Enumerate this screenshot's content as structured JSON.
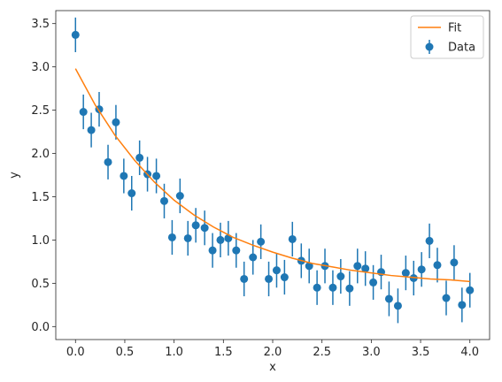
{
  "chart_data": {
    "type": "scatter",
    "xlabel": "x",
    "ylabel": "y",
    "xlim": [
      -0.2,
      4.2
    ],
    "ylim": [
      -0.15,
      3.65
    ],
    "xticks": [
      0.0,
      0.5,
      1.0,
      1.5,
      2.0,
      2.5,
      3.0,
      3.5,
      4.0
    ],
    "xtick_labels": [
      "0.0",
      "0.5",
      "1.0",
      "1.5",
      "2.0",
      "2.5",
      "3.0",
      "3.5",
      "4.0"
    ],
    "yticks": [
      0.0,
      0.5,
      1.0,
      1.5,
      2.0,
      2.5,
      3.0,
      3.5
    ],
    "ytick_labels": [
      "0.0",
      "0.5",
      "1.0",
      "1.5",
      "2.0",
      "2.5",
      "3.0",
      "3.5"
    ],
    "grid": false,
    "legend_position": "top-right",
    "series": [
      {
        "name": "Fit",
        "kind": "line",
        "color": "#ff7f0e",
        "x": [
          0.0,
          0.2,
          0.4,
          0.6,
          0.8,
          1.0,
          1.2,
          1.4,
          1.6,
          1.8,
          2.0,
          2.2,
          2.4,
          2.6,
          2.8,
          3.0,
          3.2,
          3.4,
          3.6,
          3.8,
          4.0
        ],
        "y": [
          2.98,
          2.56,
          2.21,
          1.92,
          1.67,
          1.46,
          1.29,
          1.15,
          1.03,
          0.94,
          0.86,
          0.79,
          0.73,
          0.69,
          0.65,
          0.62,
          0.59,
          0.57,
          0.55,
          0.54,
          0.52
        ]
      },
      {
        "name": "Data",
        "kind": "errorbar",
        "color": "#1f77b4",
        "error": 0.2,
        "x": [
          0.0,
          0.08,
          0.16,
          0.24,
          0.33,
          0.41,
          0.49,
          0.57,
          0.65,
          0.73,
          0.82,
          0.9,
          0.98,
          1.06,
          1.14,
          1.22,
          1.31,
          1.39,
          1.47,
          1.55,
          1.63,
          1.71,
          1.8,
          1.88,
          1.96,
          2.04,
          2.12,
          2.2,
          2.29,
          2.37,
          2.45,
          2.53,
          2.61,
          2.69,
          2.78,
          2.86,
          2.94,
          3.02,
          3.1,
          3.18,
          3.27,
          3.35,
          3.43,
          3.51,
          3.59,
          3.67,
          3.76,
          3.84,
          3.92,
          4.0
        ],
        "y": [
          3.37,
          2.48,
          2.27,
          2.51,
          1.9,
          2.36,
          1.74,
          1.54,
          1.95,
          1.76,
          1.74,
          1.45,
          1.03,
          1.51,
          1.02,
          1.17,
          1.14,
          0.88,
          1.0,
          1.02,
          0.88,
          0.55,
          0.8,
          0.98,
          0.55,
          0.65,
          0.57,
          1.01,
          0.76,
          0.7,
          0.45,
          0.7,
          0.45,
          0.58,
          0.44,
          0.7,
          0.67,
          0.51,
          0.63,
          0.32,
          0.24,
          0.62,
          0.56,
          0.66,
          0.99,
          0.71,
          0.33,
          0.74,
          0.25,
          0.42
        ]
      }
    ]
  }
}
